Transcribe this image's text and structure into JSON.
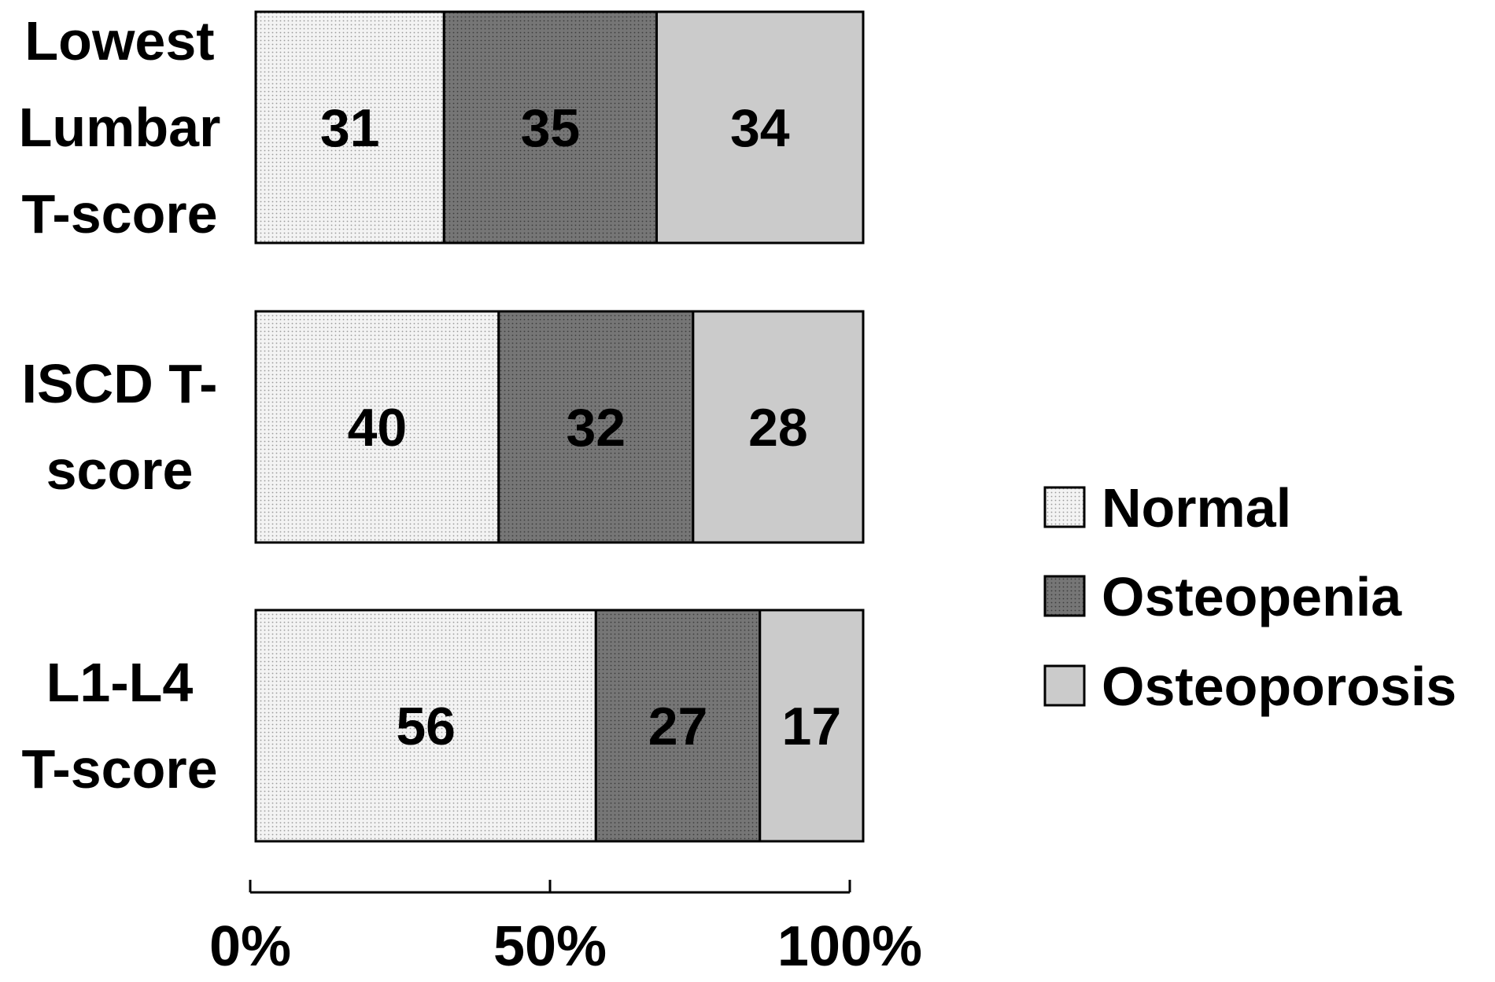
{
  "chart_data": {
    "type": "bar",
    "orientation": "horizontal",
    "stacked": true,
    "categories": [
      {
        "lines": [
          "Lowest",
          "Lumbar",
          "T-score"
        ]
      },
      {
        "lines": [
          "ISCD T-",
          "score"
        ]
      },
      {
        "lines": [
          "L1-L4",
          "T-score"
        ]
      }
    ],
    "series": [
      {
        "name": "Normal",
        "values": [
          31,
          40,
          56
        ],
        "color": "#ececec",
        "pattern": "dotted-light"
      },
      {
        "name": "Osteopenia",
        "values": [
          35,
          32,
          27
        ],
        "color": "#6e6e6e",
        "pattern": "dotted-dark"
      },
      {
        "name": "Osteoporosis",
        "values": [
          34,
          28,
          17
        ],
        "color": "#cacaca",
        "pattern": "solid"
      }
    ],
    "x_ticks": [
      "0%",
      "50%",
      "100%"
    ],
    "xlim": [
      0,
      100
    ],
    "grid": false,
    "legend_position": "right"
  }
}
